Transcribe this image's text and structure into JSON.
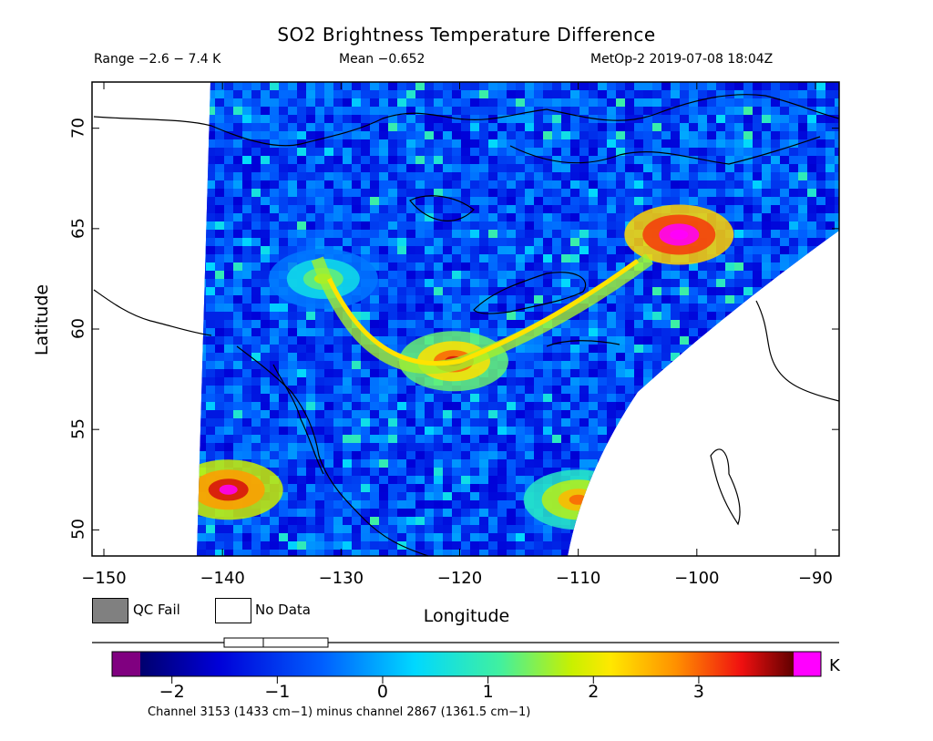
{
  "title": "SO2 Brightness Temperature Difference",
  "range_text": "Range −2.6 − 7.4 K",
  "mean_text": "Mean −0.652",
  "satellite_time": "MetOp-2 2019-07-08 18:04Z",
  "axes": {
    "xlabel": "Longitude",
    "ylabel": "Latitude",
    "x_ticks": [
      "−150",
      "−140",
      "−130",
      "−120",
      "−110",
      "−100",
      "−90"
    ],
    "y_ticks": [
      "50",
      "55",
      "60",
      "65",
      "70"
    ],
    "xlim": [
      -151,
      -88
    ],
    "ylim": [
      48.7,
      72.3
    ]
  },
  "legend": {
    "qc_fail": "QC Fail",
    "no_data": "No Data",
    "qc_color": "#808080",
    "no_data_color": "#ffffff"
  },
  "colorbar": {
    "ticks": [
      "−2",
      "−1",
      "0",
      "1",
      "2",
      "3"
    ],
    "tick_values": [
      -2,
      -1,
      0,
      1,
      2,
      3
    ],
    "range": [
      -2.3,
      3.9
    ],
    "units": "K",
    "low_overflow_color": "#800080",
    "high_overflow_color": "#ff00ff"
  },
  "footnote": "Channel 3153 (1433 cm−1) minus channel 2867 (1361.5 cm−1)",
  "chart_data": {
    "type": "heatmap",
    "swath": {
      "west_lon": -141.5,
      "east_edge": "curved",
      "min_value": -2.6,
      "max_value": 7.4,
      "mean": -0.652
    },
    "plume_features": [
      {
        "name": "arc_center",
        "lon": -120.5,
        "lat": 58.4,
        "value": 3.5
      },
      {
        "name": "arc_north",
        "lon": -131.5,
        "lat": 62.5,
        "value": 1.8
      },
      {
        "name": "eastern_hotspot",
        "lon": -101.5,
        "lat": 64.7,
        "value": 4.5
      },
      {
        "name": "western_edge",
        "lon": -139.5,
        "lat": 52.0,
        "value": 4.0
      },
      {
        "name": "southeast_edge",
        "lon": -110.0,
        "lat": 51.5,
        "value": 3.0
      }
    ]
  }
}
